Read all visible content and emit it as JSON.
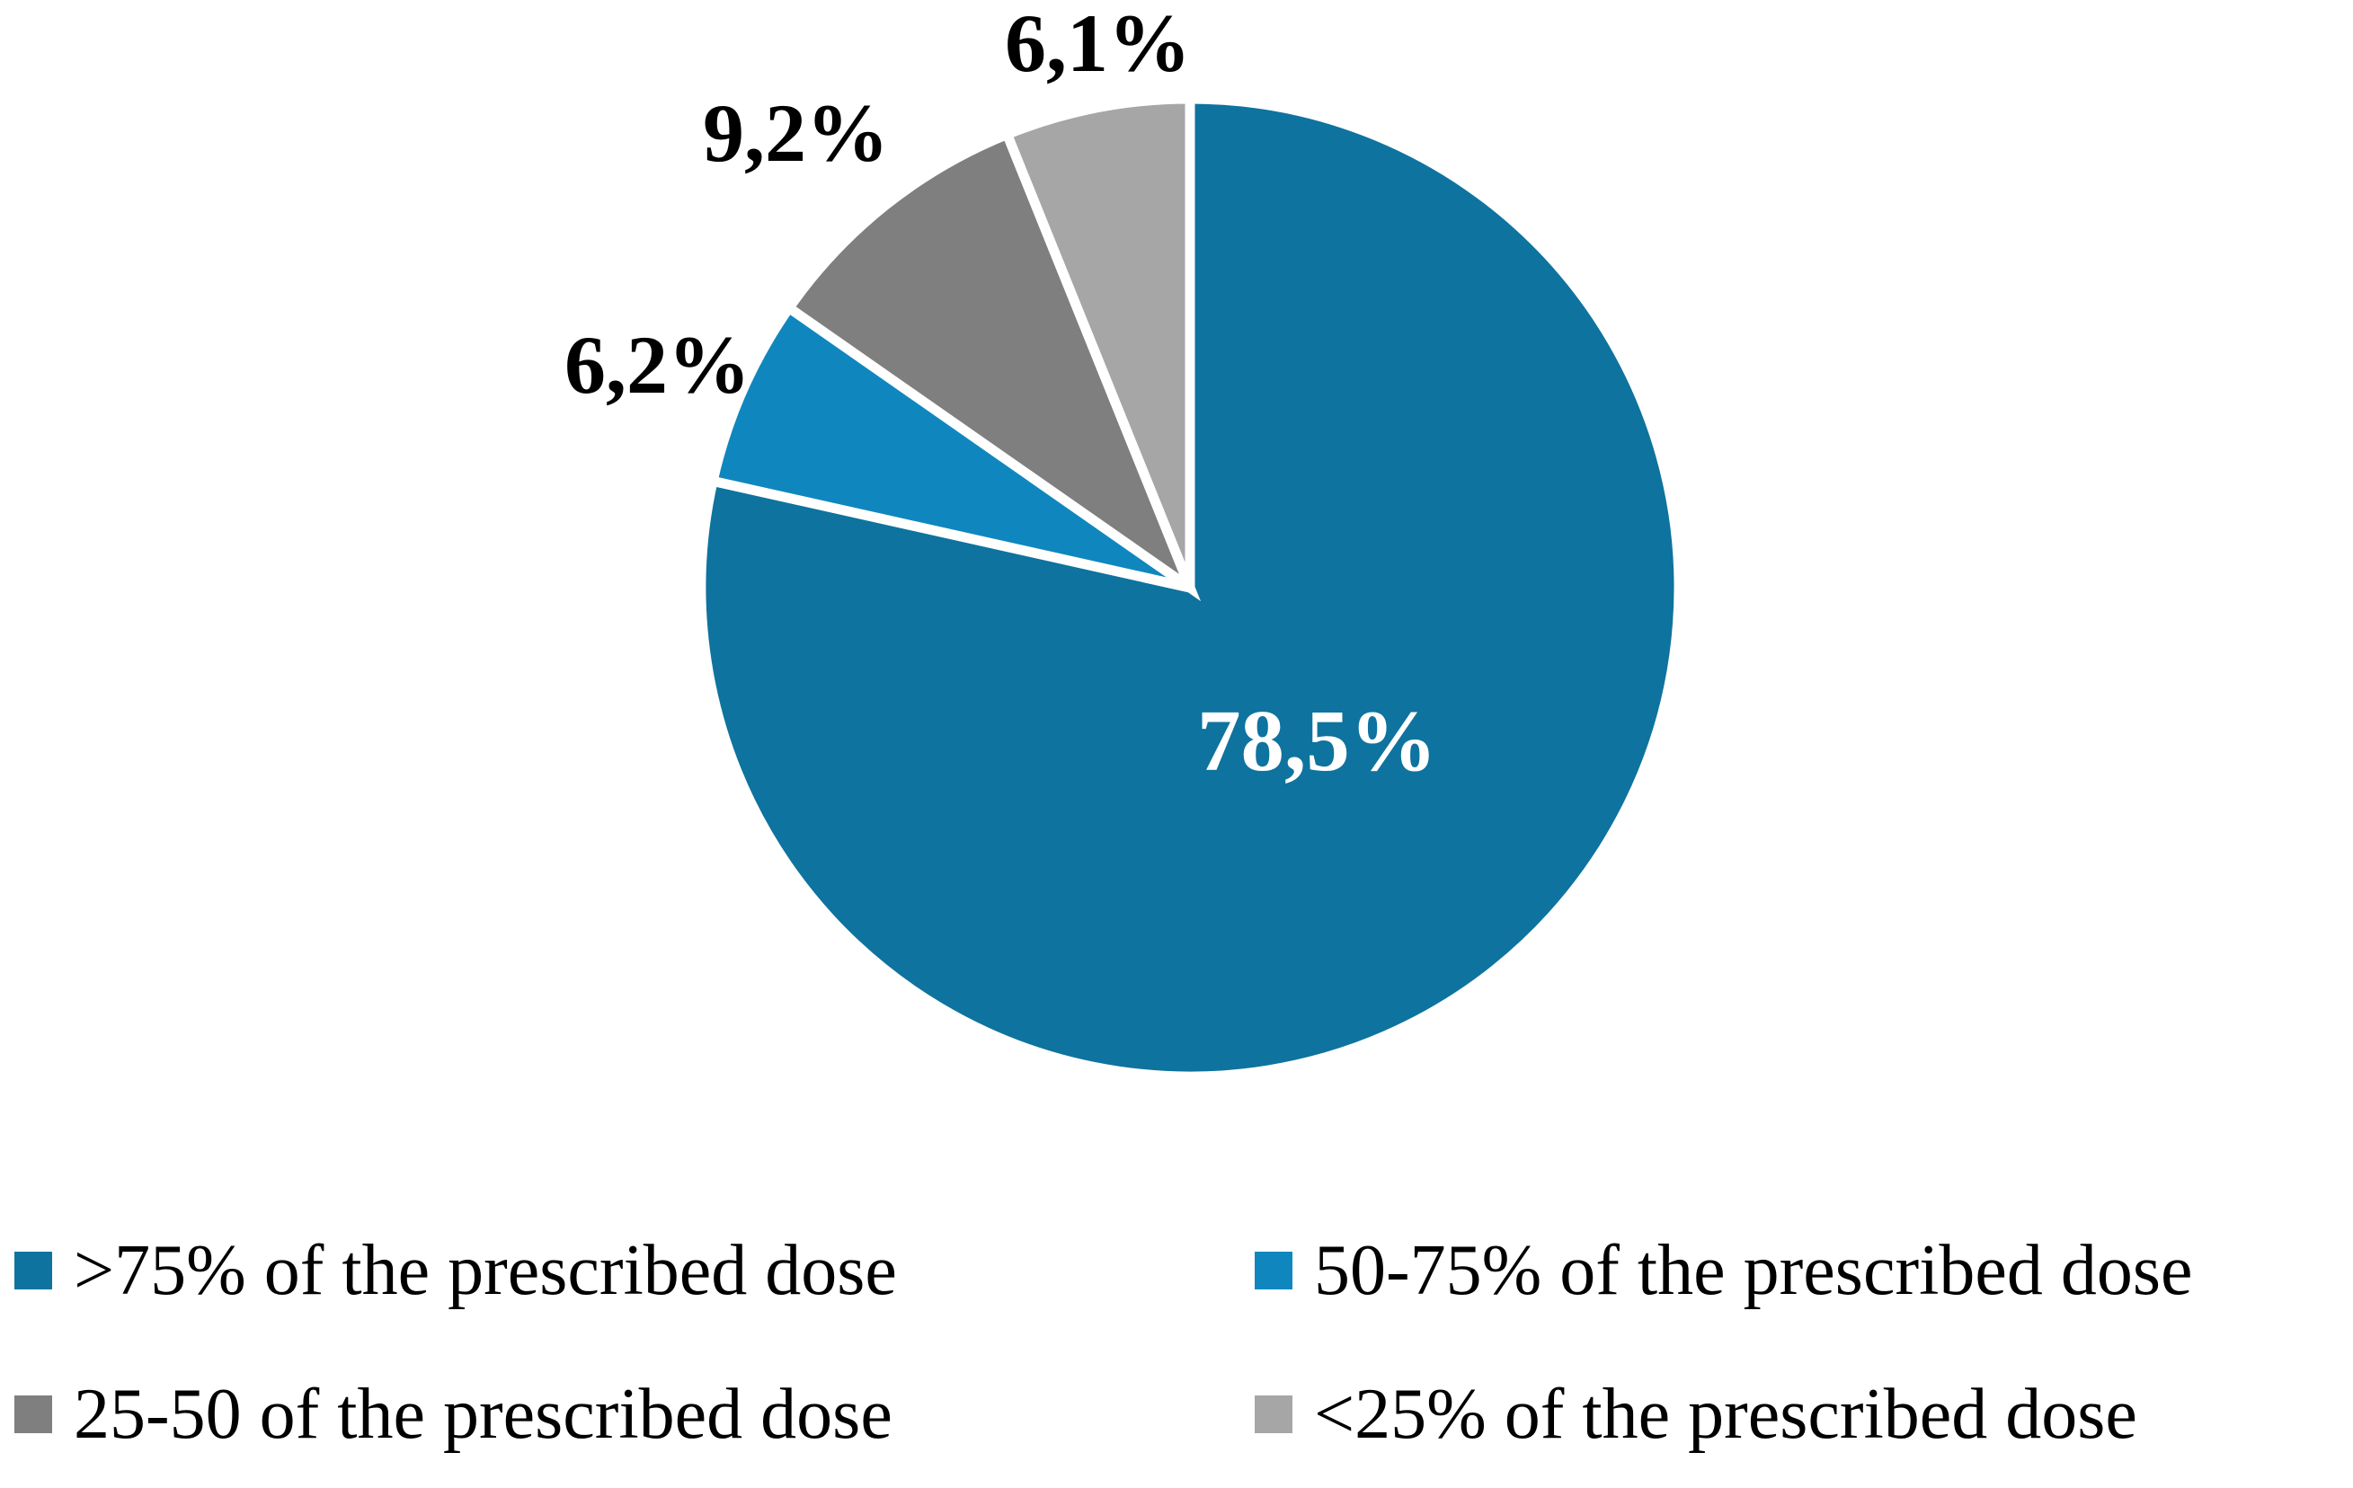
{
  "chart_data": {
    "type": "pie",
    "title": "",
    "direction": "clockwise",
    "start_angle_deg": 0,
    "legend_position": "bottom",
    "legend_columns": 2,
    "separator_color": "#ffffff",
    "background_color": "#ffffff",
    "outside_label_color": "#000000",
    "inside_label_color": "#ffffff",
    "slices": [
      {
        "label": ">75% of the prescribed dose",
        "value": 78.5,
        "display": "78,5%",
        "color": "#0e739e",
        "label_placement": "inside"
      },
      {
        "label": "50-75% of the prescribed dose",
        "value": 6.2,
        "display": "6,2%",
        "color": "#0f87be",
        "label_placement": "outside"
      },
      {
        "label": "25-50 of the prescribed dose",
        "value": 9.2,
        "display": "9,2%",
        "color": "#7f7f7f",
        "label_placement": "outside"
      },
      {
        "label": "<25% of the prescribed dose",
        "value": 6.1,
        "display": "6,1%",
        "color": "#a6a6a6",
        "label_placement": "outside"
      }
    ]
  }
}
